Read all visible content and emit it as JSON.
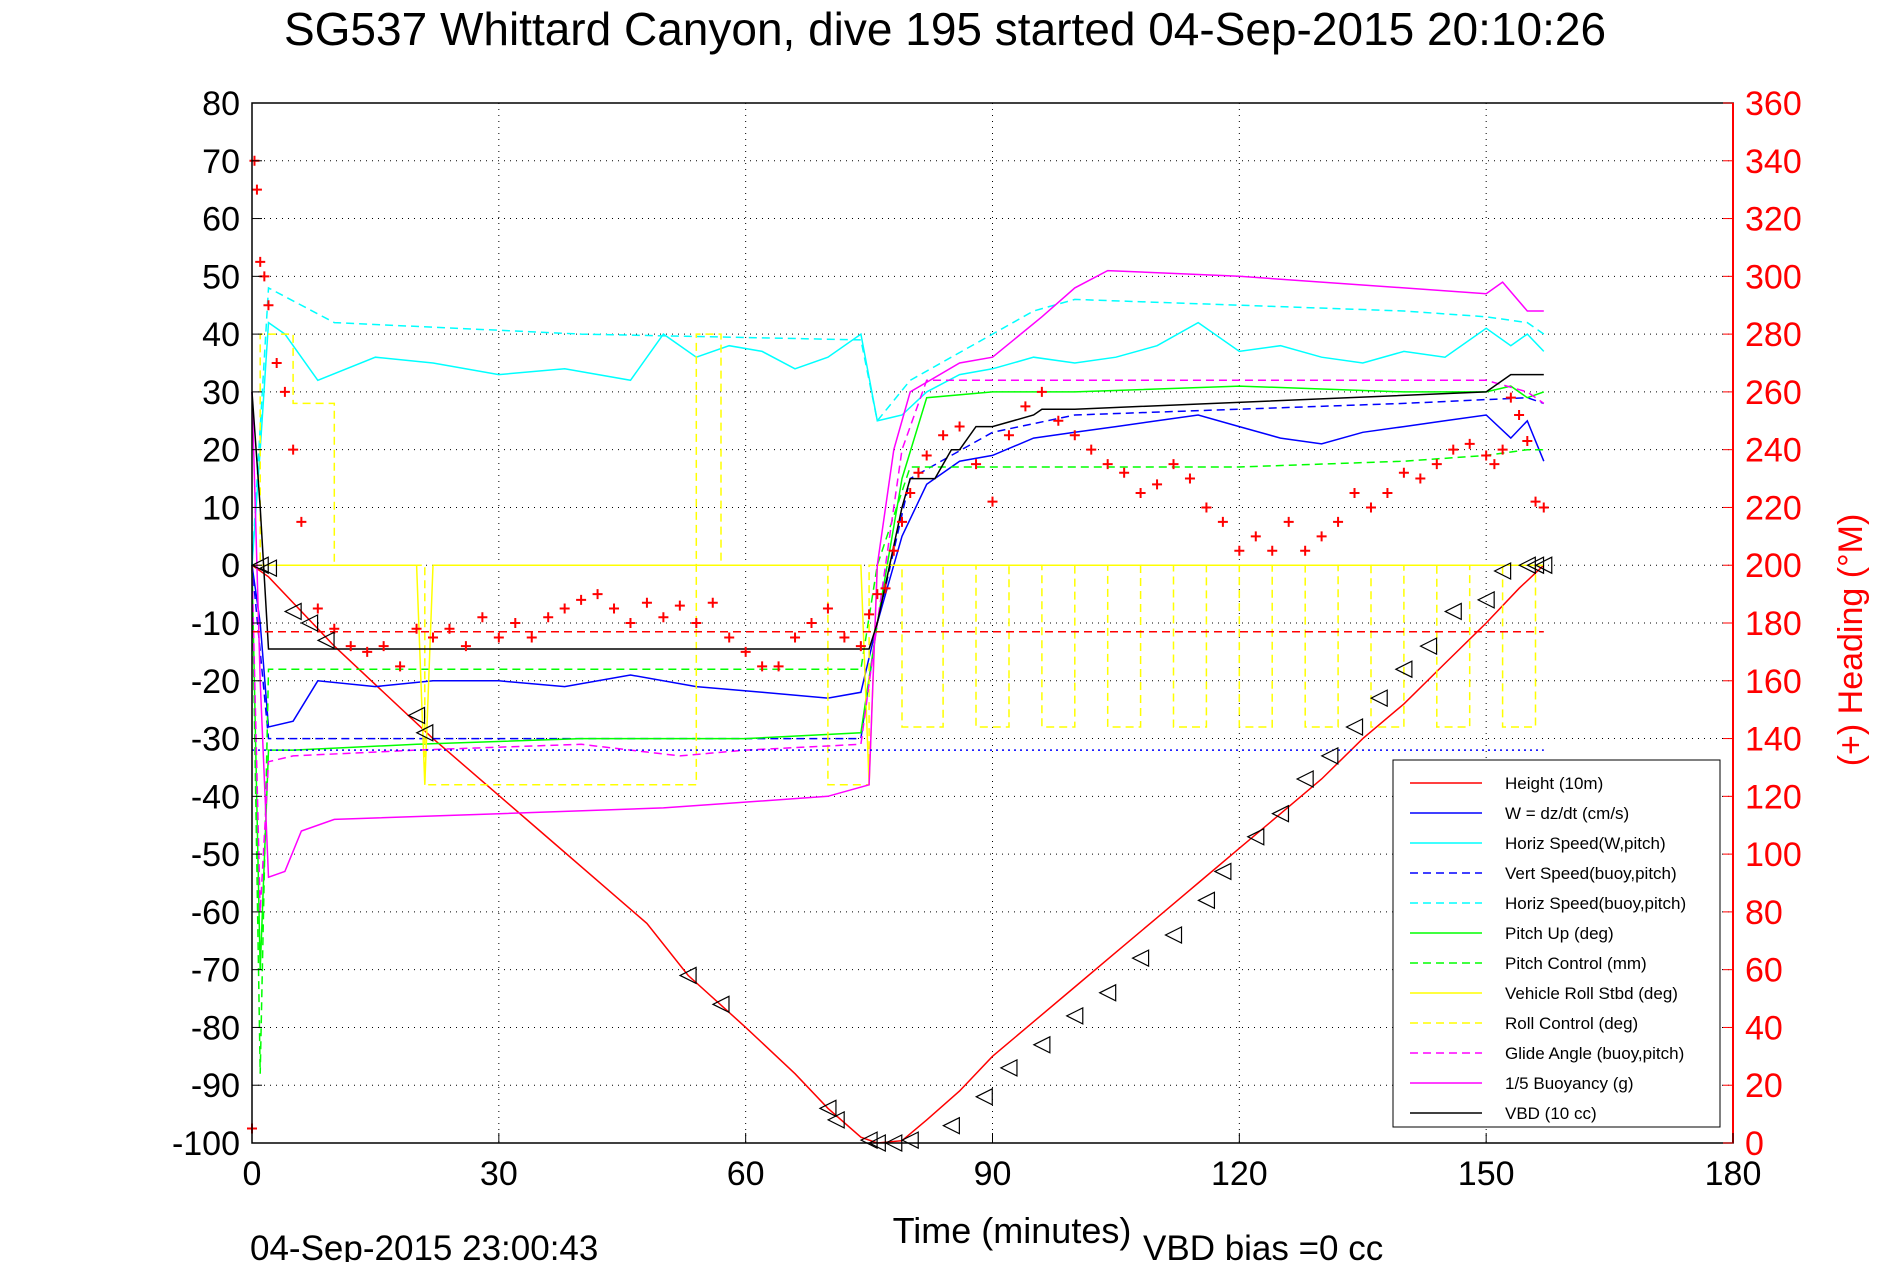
{
  "chart_data": {
    "type": "line",
    "title": "SG537 Whittard Canyon, dive 195 started 04-Sep-2015 20:10:26",
    "xlabel": "Time (minutes)",
    "ylabel": "",
    "y2label": "(+) Heading (°M)",
    "xlim": [
      0,
      180
    ],
    "ylim": [
      -100,
      80
    ],
    "y2lim": [
      0,
      360
    ],
    "xticks": [
      "0",
      "30",
      "60",
      "90",
      "120",
      "150",
      "180"
    ],
    "yticks": [
      "80",
      "70",
      "60",
      "50",
      "40",
      "30",
      "20",
      "10",
      "0",
      "-10",
      "-20",
      "-30",
      "-40",
      "-50",
      "-60",
      "-70",
      "-80",
      "-90",
      "-100"
    ],
    "y2ticks": [
      "360",
      "340",
      "320",
      "300",
      "280",
      "260",
      "240",
      "220",
      "200",
      "180",
      "160",
      "140",
      "120",
      "100",
      "80",
      "60",
      "40",
      "20",
      "0"
    ],
    "grid": true,
    "legend_position": "bottom-right",
    "footer_left": "04-Sep-2015 23:00:43",
    "footer_right": "VBD bias =0 cc",
    "colors": {
      "red": "#ff0000",
      "blue": "#0000ff",
      "cyan": "#00ffff",
      "green": "#00ff00",
      "yellow": "#ffff00",
      "magenta": "#ff00ff",
      "black": "#000000"
    },
    "series": [
      {
        "name": "Height (10m)",
        "color": "#ff0000",
        "dash": "",
        "axis": "left",
        "x": [
          0,
          2,
          10,
          22,
          35,
          48,
          53,
          60,
          66,
          70,
          74,
          76,
          79,
          82,
          86,
          90,
          95,
          100,
          105,
          110,
          115,
          120,
          125,
          130,
          135,
          140,
          145,
          150,
          154,
          157
        ],
        "y": [
          0,
          -2,
          -14,
          -30,
          -46,
          -62,
          -71,
          -80,
          -88,
          -94,
          -99,
          -100,
          -99.6,
          -96,
          -91,
          -85,
          -79,
          -73,
          -67,
          -61,
          -55,
          -49,
          -43,
          -37,
          -30,
          -24,
          -17,
          -10,
          -4,
          0
        ]
      },
      {
        "name": "W = dz/dt (cm/s)",
        "color": "#0000ff",
        "dash": "",
        "axis": "left",
        "x": [
          0,
          1,
          2,
          5,
          8,
          15,
          22,
          30,
          38,
          46,
          54,
          62,
          70,
          74,
          76,
          79,
          82,
          86,
          90,
          95,
          100,
          105,
          110,
          115,
          120,
          125,
          130,
          135,
          140,
          145,
          150,
          153,
          155,
          157
        ],
        "y": [
          0,
          -10,
          -28,
          -27,
          -20,
          -21,
          -20,
          -20,
          -21,
          -19,
          -21,
          -22,
          -23,
          -22,
          -10,
          5,
          14,
          18,
          19,
          22,
          23,
          24,
          25,
          26,
          24,
          22,
          21,
          23,
          24,
          25,
          26,
          22,
          25,
          18
        ]
      },
      {
        "name": "Horiz Speed(W,pitch)",
        "color": "#00ffff",
        "dash": "",
        "axis": "left",
        "x": [
          0,
          1,
          2,
          4,
          8,
          15,
          22,
          30,
          38,
          46,
          50,
          54,
          58,
          62,
          66,
          70,
          74,
          76,
          79,
          82,
          86,
          90,
          95,
          100,
          105,
          110,
          115,
          120,
          125,
          130,
          135,
          140,
          145,
          150,
          153,
          155,
          157
        ],
        "y": [
          0,
          20,
          42,
          40,
          32,
          36,
          35,
          33,
          34,
          32,
          40,
          36,
          38,
          37,
          34,
          36,
          40,
          25,
          26,
          30,
          33,
          34,
          36,
          35,
          36,
          38,
          42,
          37,
          38,
          36,
          35,
          37,
          36,
          41,
          38,
          40,
          37
        ]
      },
      {
        "name": "Vert Speed(buoy,pitch)",
        "color": "#0000ff",
        "dash": "8,5",
        "axis": "left",
        "x": [
          0,
          2,
          10,
          40,
          74,
          76,
          80,
          90,
          100,
          120,
          140,
          155,
          157
        ],
        "y": [
          0,
          -30,
          -30,
          -30,
          -30,
          -10,
          15,
          23,
          26,
          27,
          28,
          29,
          28
        ]
      },
      {
        "name": "Horiz Speed(buoy,pitch)",
        "color": "#00ffff",
        "dash": "8,5",
        "axis": "left",
        "x": [
          0,
          2,
          10,
          40,
          74,
          76,
          80,
          90,
          95,
          100,
          120,
          140,
          150,
          155,
          157
        ],
        "y": [
          0,
          48,
          42,
          40,
          39,
          25,
          32,
          40,
          44,
          46,
          45,
          44,
          43,
          42,
          40
        ]
      },
      {
        "name": "Pitch Up (deg)",
        "color": "#00ff00",
        "dash": "",
        "axis": "left",
        "x": [
          0,
          1,
          2,
          5,
          20,
          40,
          60,
          74,
          76,
          79,
          82,
          90,
          100,
          120,
          140,
          150,
          153,
          155,
          157
        ],
        "y": [
          0,
          -70,
          -32,
          -32,
          -31,
          -30,
          -30,
          -29,
          -10,
          15,
          29,
          30,
          30,
          31,
          30,
          30,
          31,
          29,
          30
        ]
      },
      {
        "name": "Pitch Control (mm)",
        "color": "#00ff00",
        "dash": "8,5",
        "axis": "left",
        "x": [
          0,
          1,
          2,
          5,
          40,
          74,
          76,
          80,
          90,
          120,
          140,
          150,
          155,
          157
        ],
        "y": [
          0,
          -88,
          -18,
          -18,
          -18,
          -18,
          0,
          17,
          17,
          17,
          18,
          19,
          20,
          20
        ]
      },
      {
        "name": "Vehicle Roll Stbd (deg)",
        "color": "#ffff00",
        "dash": "",
        "axis": "left",
        "x": [
          0,
          2,
          20,
          21,
          22,
          40,
          74,
          75,
          76,
          157
        ],
        "y": [
          0,
          0,
          0,
          -38,
          0,
          0,
          0,
          -38,
          0,
          0
        ]
      },
      {
        "name": "Roll Control (deg)",
        "color": "#ffff00",
        "dash": "8,5",
        "axis": "left",
        "x": [
          0,
          1,
          1,
          5,
          5,
          10,
          10,
          21,
          21,
          54,
          54,
          57,
          57,
          70,
          70,
          75,
          75,
          79,
          79,
          84,
          84,
          88,
          88,
          92,
          92,
          96,
          96,
          100,
          100,
          104,
          104,
          108,
          108,
          112,
          112,
          116,
          116,
          120,
          120,
          124,
          124,
          128,
          128,
          132,
          132,
          136,
          136,
          140,
          140,
          144,
          144,
          148,
          148,
          152,
          152,
          156,
          156,
          157
        ],
        "y": [
          0,
          0,
          40,
          40,
          28,
          28,
          0,
          0,
          -38,
          -38,
          40,
          40,
          0,
          0,
          -38,
          -38,
          0,
          0,
          -28,
          -28,
          0,
          0,
          -28,
          -28,
          0,
          0,
          -28,
          -28,
          0,
          0,
          -28,
          -28,
          0,
          0,
          -28,
          -28,
          0,
          0,
          -28,
          -28,
          0,
          0,
          -28,
          -28,
          0,
          0,
          -28,
          -28,
          0,
          0,
          -28,
          -28,
          0,
          0,
          -28,
          -28,
          0,
          0
        ]
      },
      {
        "name": "Glide Angle (buoy,pitch)",
        "color": "#ff00ff",
        "dash": "8,5",
        "axis": "left",
        "x": [
          0,
          1,
          2,
          5,
          20,
          40,
          52,
          60,
          74,
          76,
          79,
          82,
          90,
          100,
          120,
          140,
          150,
          155,
          157
        ],
        "y": [
          0,
          -60,
          -34,
          -33,
          -32,
          -31,
          -33,
          -32,
          -31,
          -10,
          20,
          32,
          32,
          32,
          32,
          32,
          32,
          30,
          28
        ]
      },
      {
        "name": "1/5 Buoyancy (g)",
        "color": "#ff00ff",
        "dash": "",
        "axis": "left",
        "x": [
          0,
          1,
          2,
          4,
          6,
          10,
          30,
          50,
          70,
          75,
          76,
          78,
          80,
          86,
          90,
          96,
          100,
          104,
          120,
          140,
          150,
          152,
          155,
          157
        ],
        "y": [
          30,
          -20,
          -54,
          -53,
          -46,
          -44,
          -43,
          -42,
          -40,
          -38,
          0,
          20,
          30,
          35,
          36,
          43,
          48,
          51,
          50,
          48,
          47,
          49,
          44,
          44
        ]
      },
      {
        "name": "VBD (10 cc)",
        "color": "#000000",
        "dash": "",
        "axis": "left",
        "x": [
          0,
          1,
          2,
          75,
          76,
          79,
          80,
          83,
          85,
          86,
          88,
          90,
          95,
          96,
          100,
          150,
          153,
          157
        ],
        "y": [
          30,
          10,
          -14.5,
          -14.5,
          -10,
          10,
          15,
          15,
          20,
          20,
          24,
          24,
          26,
          27,
          27,
          30,
          33,
          33
        ]
      },
      {
        "name": "",
        "color": "#ff0000",
        "dash": "8,5",
        "axis": "right",
        "x": [
          0,
          157
        ],
        "y": [
          177,
          177
        ]
      },
      {
        "name": "",
        "color": "#0000ff",
        "dash": "2,4",
        "axis": "left",
        "x": [
          0,
          157
        ],
        "y": [
          -32,
          -32
        ]
      }
    ],
    "heading": {
      "name": "Heading (°M)",
      "color": "#ff0000",
      "marker": "+",
      "axis": "right",
      "x": [
        0,
        0.3,
        0.6,
        1,
        1.5,
        2,
        3,
        4,
        5,
        6,
        8,
        10,
        12,
        14,
        16,
        18,
        20,
        22,
        24,
        26,
        28,
        30,
        32,
        34,
        36,
        38,
        40,
        42,
        44,
        46,
        48,
        50,
        52,
        54,
        56,
        58,
        60,
        62,
        64,
        66,
        68,
        70,
        72,
        74,
        75,
        76,
        77,
        78,
        79,
        80,
        81,
        82,
        84,
        86,
        88,
        90,
        92,
        94,
        96,
        98,
        100,
        102,
        104,
        106,
        108,
        110,
        112,
        114,
        116,
        118,
        120,
        122,
        124,
        126,
        128,
        130,
        132,
        134,
        136,
        138,
        140,
        142,
        144,
        146,
        148,
        150,
        151,
        152,
        153,
        154,
        155,
        156,
        157
      ],
      "y": [
        5,
        340,
        330,
        305,
        300,
        290,
        270,
        260,
        240,
        215,
        185,
        178,
        172,
        170,
        172,
        165,
        178,
        175,
        178,
        172,
        182,
        175,
        180,
        175,
        182,
        185,
        188,
        190,
        185,
        180,
        187,
        182,
        186,
        180,
        187,
        175,
        170,
        165,
        165,
        175,
        180,
        185,
        175,
        172,
        183,
        190,
        192,
        205,
        215,
        225,
        232,
        238,
        245,
        248,
        235,
        222,
        245,
        255,
        260,
        250,
        245,
        240,
        235,
        232,
        225,
        228,
        235,
        230,
        220,
        215,
        205,
        210,
        205,
        215,
        205,
        210,
        215,
        225,
        220,
        225,
        232,
        230,
        235,
        240,
        242,
        238,
        235,
        240,
        258,
        252,
        243,
        222,
        220
      ]
    },
    "triangles": {
      "color": "#000000",
      "x": [
        1,
        2,
        5,
        7,
        9,
        20,
        21,
        53,
        57,
        70,
        71,
        75,
        76,
        78,
        80,
        85,
        89,
        92,
        96,
        100,
        104,
        108,
        112,
        116,
        118,
        122,
        125,
        128,
        131,
        134,
        137,
        140,
        143,
        146,
        150,
        152,
        155,
        156,
        157
      ],
      "y": [
        0,
        -0.5,
        -8,
        -10,
        -13,
        -26,
        -29,
        -71,
        -76,
        -94,
        -96,
        -99.5,
        -100,
        -100,
        -99.5,
        -97,
        -92,
        -87,
        -83,
        -78,
        -74,
        -68,
        -64,
        -58,
        -53,
        -47,
        -43,
        -37,
        -33,
        -28,
        -23,
        -18,
        -14,
        -8,
        -6,
        -1,
        0,
        0,
        0
      ]
    }
  }
}
